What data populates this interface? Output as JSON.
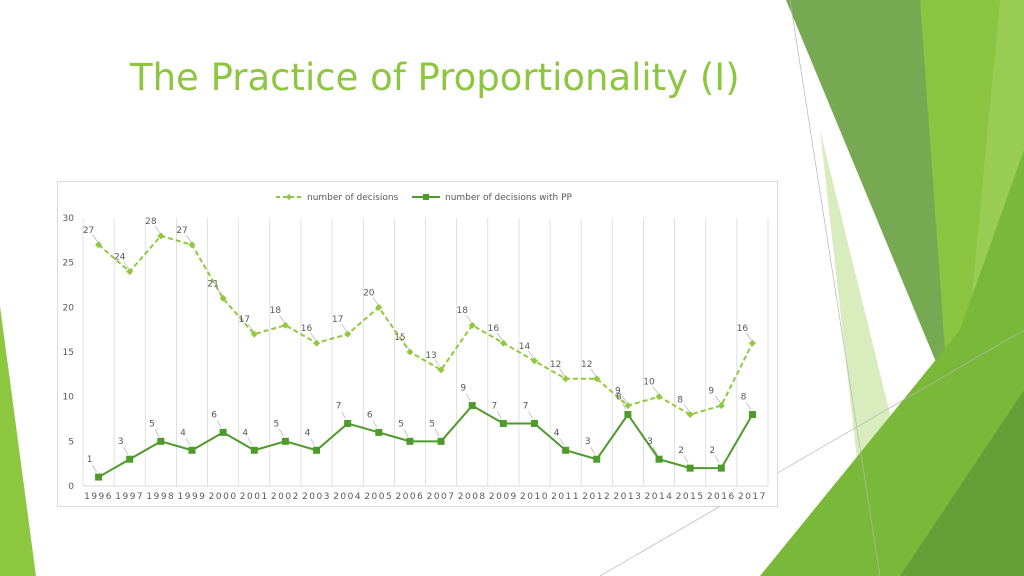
{
  "slide": {
    "title": "The Practice of Proportionality (I)"
  },
  "colors": {
    "accent": "#8dc63f",
    "series1": "#92c83e",
    "series2": "#4e9a2c",
    "grid": "#d9d9d9",
    "text": "#595959"
  },
  "chart_data": {
    "type": "line",
    "title": "",
    "xlabel": "",
    "ylabel": "",
    "categories": [
      "1996",
      "1997",
      "1998",
      "1999",
      "2000",
      "2001",
      "2002",
      "2003",
      "2004",
      "2005",
      "2006",
      "2007",
      "2008",
      "2009",
      "2010",
      "2011",
      "2012",
      "2013",
      "2014",
      "2015",
      "2016",
      "2017"
    ],
    "ylim": [
      0,
      30
    ],
    "yticks": [
      0,
      5,
      10,
      15,
      20,
      25,
      30
    ],
    "legend_position": "top",
    "grid": "vertical",
    "series": [
      {
        "name": "number of decisions",
        "style": "dashed",
        "marker": "diamond",
        "values": [
          27,
          24,
          28,
          27,
          21,
          17,
          18,
          16,
          17,
          20,
          15,
          13,
          18,
          16,
          14,
          12,
          12,
          9,
          10,
          8,
          9,
          16
        ],
        "labels": [
          "27",
          "24",
          "28",
          "27",
          "21",
          "17",
          "18",
          "16",
          "17",
          "20",
          "15",
          "13",
          "18",
          "16",
          "14",
          "12",
          "12",
          "9",
          "10",
          "8",
          "9",
          "16"
        ]
      },
      {
        "name": "number of decisions with PP",
        "style": "solid",
        "marker": "square",
        "values": [
          1,
          3,
          5,
          4,
          6,
          4,
          5,
          4,
          7,
          6,
          5,
          5,
          9,
          7,
          7,
          4,
          3,
          8,
          3,
          2,
          2,
          8
        ],
        "labels": [
          "1",
          "3",
          "5",
          "4",
          "6",
          "4",
          "5",
          "4",
          "7",
          "6",
          "5",
          "5",
          "9",
          "7",
          "7",
          "4",
          "3",
          "8",
          "3",
          "2",
          "2",
          "8"
        ]
      }
    ]
  }
}
